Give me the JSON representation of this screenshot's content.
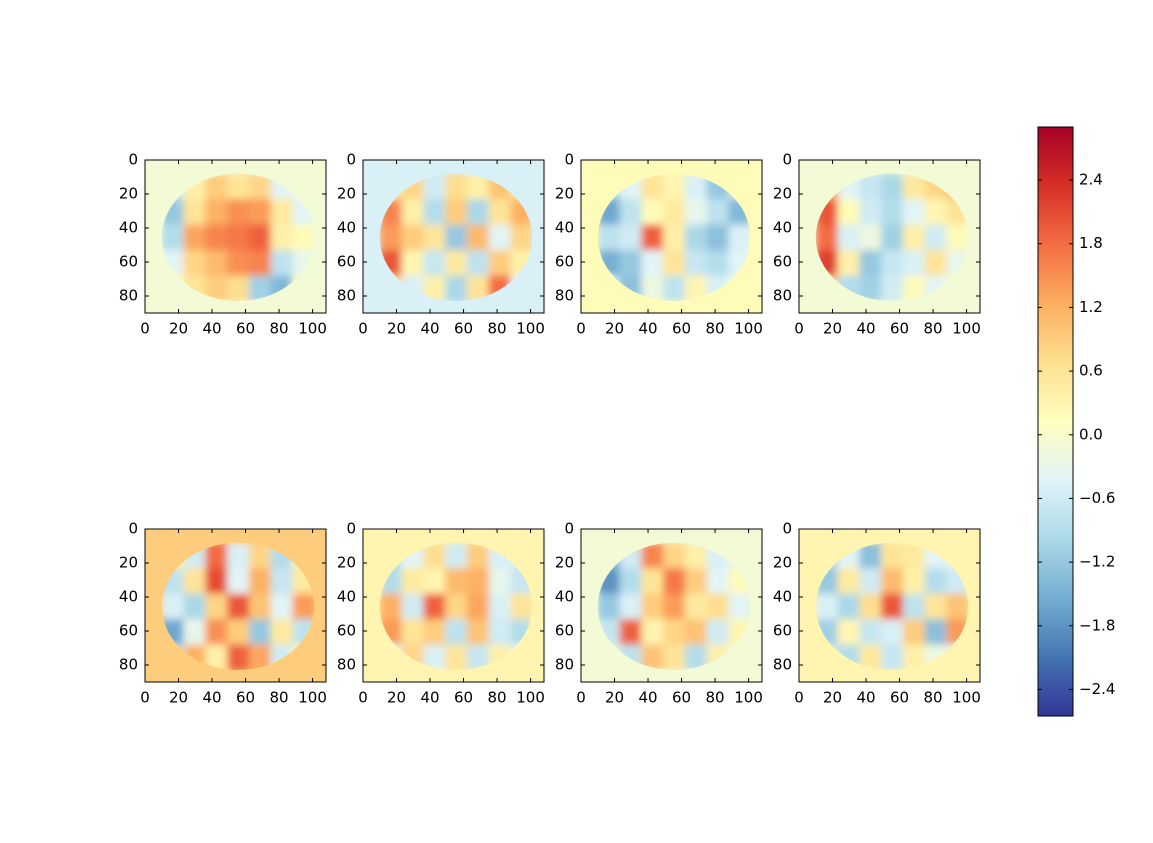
{
  "chart_data": [
    {
      "type": "heatmap",
      "background": -0.1,
      "xlim": [
        0,
        108
      ],
      "ylim": [
        90,
        0
      ],
      "xticks": [
        0,
        20,
        40,
        60,
        80,
        100
      ],
      "yticks": [
        0,
        20,
        40,
        60,
        80
      ],
      "x_edges": [
        10,
        23,
        36,
        49,
        62,
        75,
        88,
        101
      ],
      "y_edges": [
        8,
        23,
        38,
        53,
        68,
        83
      ],
      "values": [
        [
          -0.6,
          0.4,
          0.9,
          0.6,
          0.8,
          -0.4,
          -0.2
        ],
        [
          -1.2,
          0.6,
          1.2,
          1.5,
          1.4,
          0.5,
          -0.4
        ],
        [
          -0.9,
          1.3,
          1.6,
          1.7,
          1.9,
          0.4,
          0.2
        ],
        [
          -0.4,
          0.8,
          1.1,
          1.5,
          1.6,
          -0.8,
          -0.3
        ],
        [
          0.2,
          0.6,
          0.9,
          0.7,
          -1.1,
          -1.4,
          0.1
        ]
      ]
    },
    {
      "type": "heatmap",
      "background": -0.5,
      "xlim": [
        0,
        108
      ],
      "ylim": [
        90,
        0
      ],
      "xticks": [
        0,
        20,
        40,
        60,
        80,
        100
      ],
      "yticks": [
        0,
        20,
        40,
        60,
        80
      ],
      "x_edges": [
        10,
        23,
        36,
        49,
        62,
        75,
        88,
        101
      ],
      "y_edges": [
        8,
        23,
        38,
        53,
        68,
        83
      ],
      "values": [
        [
          0.5,
          0.8,
          -0.6,
          0.7,
          0.4,
          1.0,
          0.6
        ],
        [
          1.6,
          0.4,
          -0.9,
          0.9,
          -1.0,
          0.6,
          1.2
        ],
        [
          1.4,
          0.9,
          0.6,
          -1.2,
          1.1,
          -0.4,
          0.8
        ],
        [
          2.0,
          0.3,
          -0.7,
          0.5,
          -0.8,
          0.9,
          0.4
        ],
        [
          0.8,
          -0.5,
          0.4,
          -1.0,
          0.6,
          1.8,
          -0.3
        ]
      ]
    },
    {
      "type": "heatmap",
      "background": 0.2,
      "xlim": [
        0,
        108
      ],
      "ylim": [
        90,
        0
      ],
      "xticks": [
        0,
        20,
        40,
        60,
        80,
        100
      ],
      "yticks": [
        0,
        20,
        40,
        60,
        80
      ],
      "x_edges": [
        10,
        23,
        36,
        49,
        62,
        75,
        88,
        101
      ],
      "y_edges": [
        8,
        23,
        38,
        53,
        68,
        83
      ],
      "values": [
        [
          -1.0,
          -0.4,
          0.6,
          0.3,
          -0.5,
          -1.2,
          -0.6
        ],
        [
          -1.6,
          -0.8,
          0.2,
          0.5,
          -0.3,
          -0.8,
          -1.4
        ],
        [
          -0.8,
          -0.6,
          1.9,
          0.4,
          -1.0,
          -1.3,
          -0.5
        ],
        [
          -1.5,
          -1.2,
          -0.4,
          0.6,
          -0.7,
          -0.9,
          -0.4
        ],
        [
          -0.6,
          -1.3,
          -0.2,
          -0.8,
          0.3,
          -0.5,
          -0.2
        ]
      ]
    },
    {
      "type": "heatmap",
      "background": -0.1,
      "xlim": [
        0,
        108
      ],
      "ylim": [
        90,
        0
      ],
      "xticks": [
        0,
        20,
        40,
        60,
        80,
        100
      ],
      "yticks": [
        0,
        20,
        40,
        60,
        80
      ],
      "x_edges": [
        10,
        23,
        36,
        49,
        62,
        75,
        88,
        101
      ],
      "y_edges": [
        8,
        23,
        38,
        53,
        68,
        83
      ],
      "values": [
        [
          1.2,
          -0.4,
          -0.7,
          -1.0,
          0.5,
          0.8,
          1.0
        ],
        [
          2.0,
          0.2,
          -0.6,
          -0.9,
          -0.4,
          0.3,
          0.6
        ],
        [
          1.8,
          -0.5,
          -0.2,
          -1.1,
          0.4,
          -0.6,
          0.2
        ],
        [
          2.2,
          0.4,
          -1.2,
          -0.7,
          -0.5,
          0.6,
          -0.3
        ],
        [
          0.8,
          -0.9,
          -1.1,
          -0.6,
          0.2,
          -0.4,
          0.1
        ]
      ]
    },
    {
      "type": "heatmap",
      "background": 0.9,
      "xlim": [
        0,
        108
      ],
      "ylim": [
        90,
        0
      ],
      "xticks": [
        0,
        20,
        40,
        60,
        80,
        100
      ],
      "yticks": [
        0,
        20,
        40,
        60,
        80
      ],
      "x_edges": [
        10,
        23,
        36,
        49,
        62,
        75,
        88,
        101
      ],
      "y_edges": [
        8,
        23,
        38,
        53,
        68,
        83
      ],
      "values": [
        [
          0.4,
          -0.6,
          1.8,
          -0.5,
          0.8,
          -0.9,
          0.3
        ],
        [
          -0.8,
          0.6,
          2.1,
          -0.4,
          1.2,
          -0.7,
          0.5
        ],
        [
          -0.5,
          -1.0,
          0.8,
          2.0,
          1.0,
          -0.4,
          1.4
        ],
        [
          -1.6,
          -0.3,
          1.5,
          0.9,
          -1.2,
          0.5,
          -0.8
        ],
        [
          -0.7,
          1.2,
          0.4,
          1.9,
          1.3,
          -0.6,
          0.2
        ]
      ]
    },
    {
      "type": "heatmap",
      "background": 0.3,
      "xlim": [
        0,
        108
      ],
      "ylim": [
        90,
        0
      ],
      "xticks": [
        0,
        20,
        40,
        60,
        80,
        100
      ],
      "yticks": [
        0,
        20,
        40,
        60,
        80
      ],
      "x_edges": [
        10,
        23,
        36,
        49,
        62,
        75,
        88,
        101
      ],
      "y_edges": [
        8,
        23,
        38,
        53,
        68,
        83
      ],
      "values": [
        [
          -0.8,
          -0.4,
          0.7,
          -0.6,
          0.9,
          -0.5,
          -0.6
        ],
        [
          -0.9,
          0.5,
          0.3,
          1.1,
          1.2,
          -0.3,
          -0.7
        ],
        [
          1.2,
          -0.6,
          1.9,
          0.8,
          1.3,
          -0.5,
          0.6
        ],
        [
          1.4,
          0.6,
          0.9,
          -0.8,
          1.0,
          -0.6,
          -0.9
        ],
        [
          -0.4,
          0.8,
          -0.5,
          0.6,
          -0.7,
          0.4,
          -0.3
        ]
      ]
    },
    {
      "type": "heatmap",
      "background": -0.1,
      "xlim": [
        0,
        108
      ],
      "ylim": [
        90,
        0
      ],
      "xticks": [
        0,
        20,
        40,
        60,
        80,
        100
      ],
      "yticks": [
        0,
        20,
        40,
        60,
        80
      ],
      "x_edges": [
        10,
        23,
        36,
        49,
        62,
        75,
        88,
        101
      ],
      "y_edges": [
        8,
        23,
        38,
        53,
        68,
        83
      ],
      "values": [
        [
          -1.4,
          -0.6,
          1.6,
          0.8,
          0.4,
          -0.5,
          -0.3
        ],
        [
          -1.8,
          -0.9,
          0.6,
          1.7,
          0.9,
          -0.4,
          0.2
        ],
        [
          -1.2,
          -0.5,
          0.9,
          1.4,
          0.5,
          0.7,
          -0.4
        ],
        [
          -0.7,
          1.9,
          0.3,
          0.8,
          1.0,
          -0.6,
          0.3
        ],
        [
          -0.2,
          -0.8,
          1.0,
          0.6,
          -0.9,
          0.4,
          -0.1
        ]
      ]
    },
    {
      "type": "heatmap",
      "background": 0.3,
      "xlim": [
        0,
        108
      ],
      "ylim": [
        90,
        0
      ],
      "xticks": [
        0,
        20,
        40,
        60,
        80,
        100
      ],
      "yticks": [
        0,
        20,
        40,
        60,
        80
      ],
      "x_edges": [
        10,
        23,
        36,
        49,
        62,
        75,
        88,
        101
      ],
      "y_edges": [
        8,
        23,
        38,
        53,
        68,
        83
      ],
      "values": [
        [
          -0.9,
          -0.4,
          -1.3,
          0.6,
          0.5,
          -0.4,
          -0.3
        ],
        [
          -1.2,
          0.5,
          -0.6,
          1.1,
          0.4,
          -0.9,
          -0.6
        ],
        [
          -0.5,
          -1.0,
          0.7,
          2.0,
          -0.8,
          0.6,
          1.0
        ],
        [
          -1.1,
          0.3,
          -0.7,
          -0.5,
          0.9,
          -1.3,
          1.4
        ],
        [
          -0.6,
          -0.9,
          0.5,
          -0.7,
          0.4,
          -0.2,
          -0.3
        ]
      ]
    },
    {
      "type": "colorbar",
      "ylim": [
        -2.65,
        2.9
      ],
      "colors": [
        "#313695",
        "#4575b4",
        "#74add1",
        "#abd9e9",
        "#e0f3f8",
        "#ffffbf",
        "#fee090",
        "#fdae61",
        "#f46d43",
        "#d73027",
        "#a50026"
      ],
      "yticks": [
        {
          "value": -2.4,
          "label": "−2.4"
        },
        {
          "value": -1.8,
          "label": "−1.8"
        },
        {
          "value": -1.2,
          "label": "−1.2"
        },
        {
          "value": -0.6,
          "label": "−0.6"
        },
        {
          "value": 0,
          "label": "0.0"
        },
        0.6,
        1.2,
        1.8,
        2.4
      ]
    }
  ]
}
